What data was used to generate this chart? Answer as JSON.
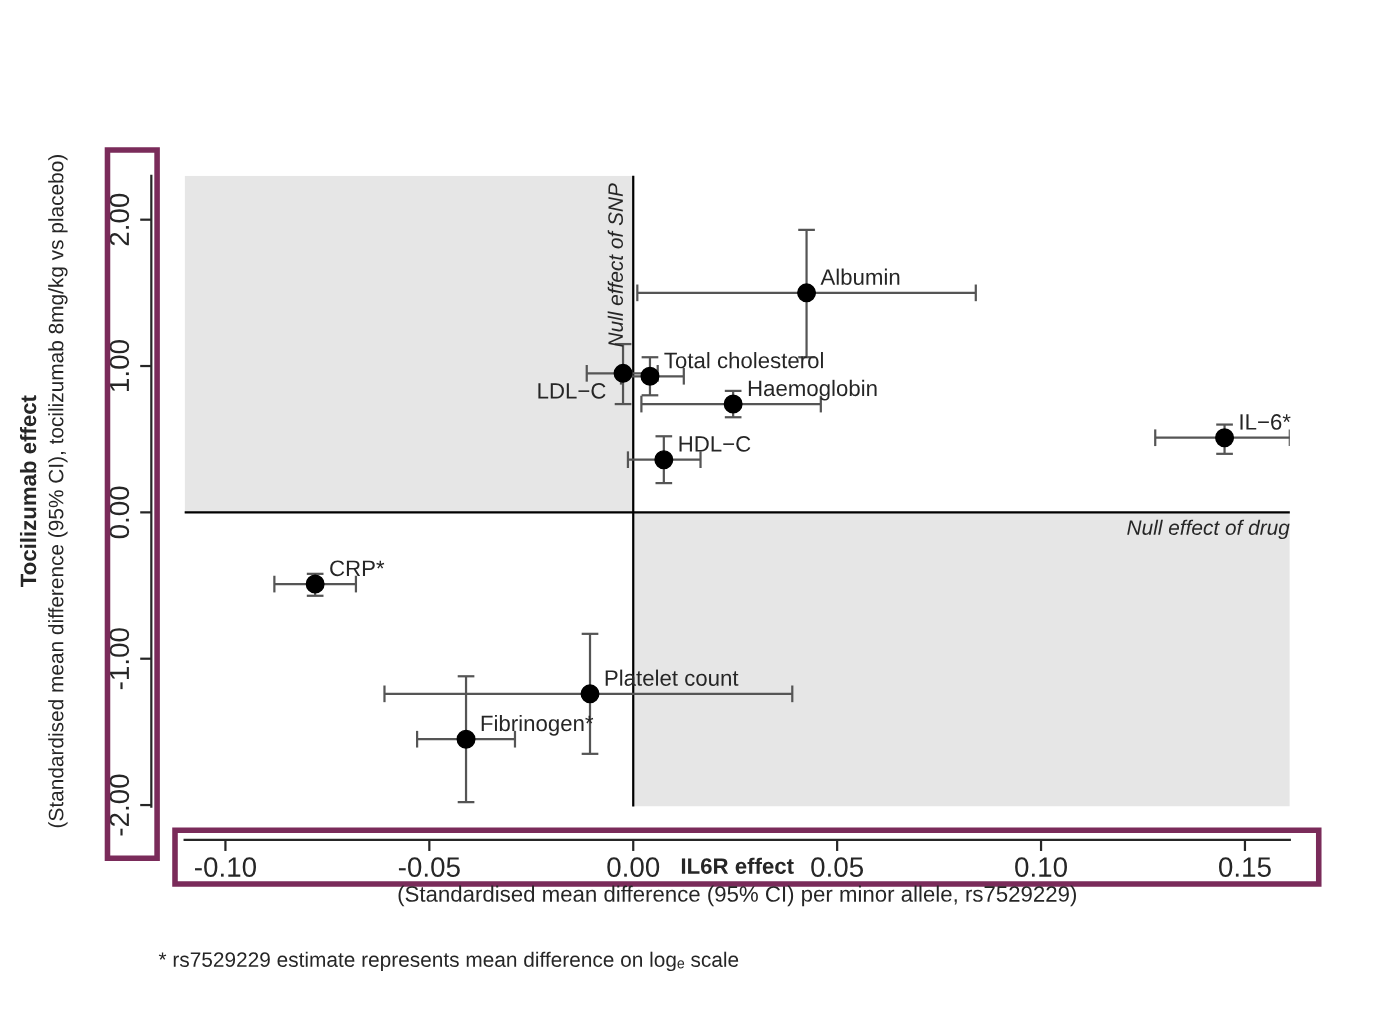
{
  "chart_data": {
    "type": "scatter",
    "xlabel": "IL6R effect\n(Standardised mean difference (95% CI) per minor allele, rs7529229)",
    "ylabel": "Tocilizumab effect\n(Standardised mean difference (95% CI), tocilizumab 8mg/kg vs placebo)",
    "series": [
      {
        "color": "#000000",
        "x": [
          -0.078,
          -0.0106,
          -0.041,
          -0.0025,
          0.0041,
          0.0075,
          0.0245,
          0.0425,
          0.145
        ],
        "values": [
          -0.49,
          -1.24,
          -1.55,
          0.95,
          0.93,
          0.36,
          0.74,
          1.5,
          0.51
        ],
        "errors": [
          [
            -0.57,
            -0.42
          ],
          [
            -1.65,
            -0.83
          ],
          [
            -1.98,
            -1.12
          ],
          [
            0.74,
            1.15
          ],
          [
            0.8,
            1.06
          ],
          [
            0.2,
            0.52
          ],
          [
            0.65,
            0.83
          ],
          [
            1.06,
            1.93
          ],
          [
            0.4,
            0.6
          ]
        ],
        "xerrors": [
          [
            -0.088,
            -0.068
          ],
          [
            -0.061,
            0.039
          ],
          [
            -0.053,
            -0.029
          ],
          [
            -0.0114,
            0.006
          ],
          [
            -0.003,
            0.0124
          ],
          [
            -0.0013,
            0.0165
          ],
          [
            0.002,
            0.046
          ],
          [
            0.001,
            0.084
          ],
          [
            0.128,
            0.161
          ]
        ]
      }
    ],
    "annotations": [
      {
        "text": "CRP*",
        "x": -0.078,
        "y": -0.49
      },
      {
        "text": "Platelet count",
        "x": -0.0106,
        "y": -1.24
      },
      {
        "text": "Fibrinogen*",
        "x": -0.041,
        "y": -1.55
      },
      {
        "text": "LDL−C",
        "x": -0.0025,
        "y": 0.95
      },
      {
        "text": "Total cholesterol",
        "x": 0.0041,
        "y": 0.93
      },
      {
        "text": "HDL−C",
        "x": 0.0075,
        "y": 0.36
      },
      {
        "text": "Haemoglobin",
        "x": 0.0245,
        "y": 0.74
      },
      {
        "text": "Albumin",
        "x": 0.0425,
        "y": 1.5
      },
      {
        "text": "IL−6*",
        "x": 0.145,
        "y": 0.51
      },
      "* rs7529229 estimate represents mean difference on logₑ scale"
    ],
    "ref_lines": [
      {
        "axis": "x",
        "value": 0,
        "label": "Null effect of SNP"
      },
      {
        "axis": "y",
        "value": 0,
        "label": "Null effect of drug"
      }
    ],
    "bands": [
      {
        "axis": "x",
        "from": -0.11,
        "to": 0,
        "color": "#e6e6e6"
      },
      {
        "axis": "x",
        "from": 0,
        "to": 0.161,
        "color": "#e6e6e6"
      }
    ],
    "marker": "circle",
    "grid": false,
    "xlim": [
      -0.11,
      0.161
    ],
    "ylim": [
      -2.01,
      2.3
    ],
    "xticks": [
      {
        "value": -0.1,
        "label": "-0.10"
      },
      {
        "value": -0.05,
        "label": "-0.05"
      },
      {
        "value": 0,
        "label": "0.00"
      },
      {
        "value": 0.05,
        "label": "0.05"
      },
      {
        "value": 0.1,
        "label": "0.10"
      },
      {
        "value": 0.15,
        "label": "0.15"
      }
    ],
    "yticks": [
      {
        "value": -2,
        "label": "-2.00"
      },
      {
        "value": -1,
        "label": "-1.00"
      },
      {
        "value": 0,
        "label": "0.00"
      },
      {
        "value": 1,
        "label": "1.00"
      },
      {
        "value": 2,
        "label": "2.00"
      }
    ]
  }
}
